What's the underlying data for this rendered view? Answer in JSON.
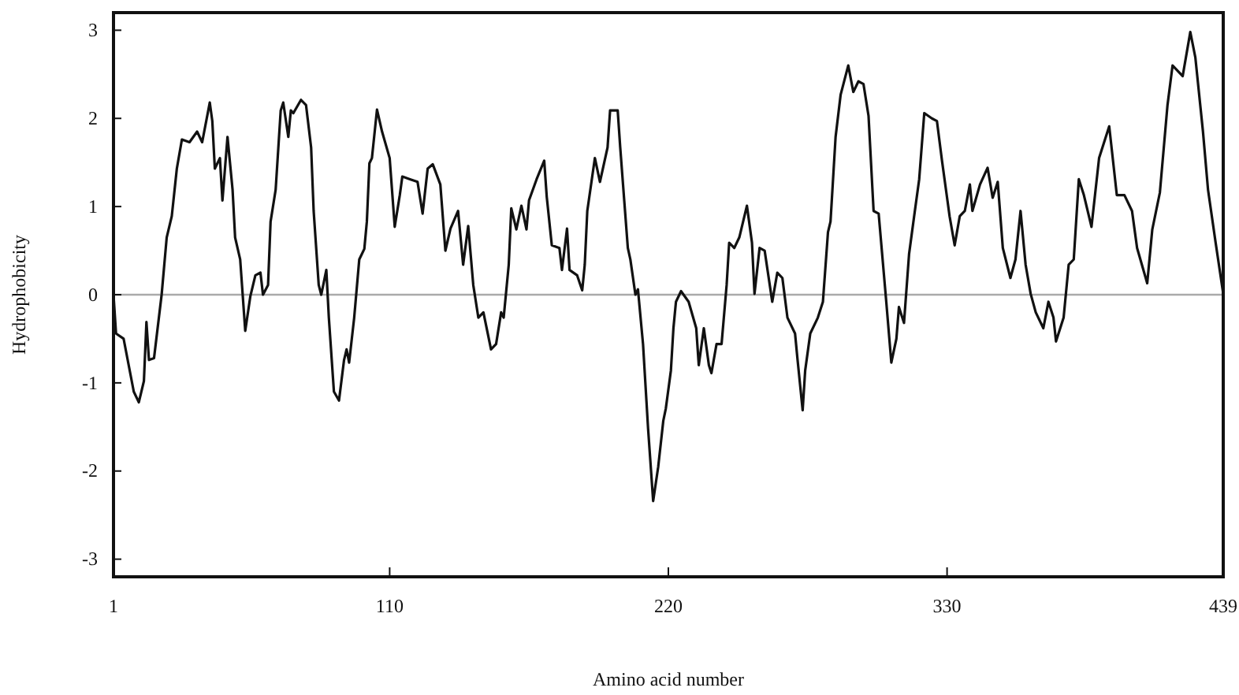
{
  "chart_data": {
    "type": "line",
    "xlabel": "Amino acid number",
    "ylabel": "Hydrophobicity",
    "xlim": [
      1,
      439
    ],
    "ylim": [
      -3.2,
      3.2
    ],
    "xticks": [
      1,
      110,
      220,
      330,
      439
    ],
    "yticks": [
      -3,
      -2,
      -1,
      0,
      1,
      2,
      3
    ],
    "grid": false,
    "marker": "none",
    "line_style": "solid",
    "ref_lines": [
      {
        "axis": "y",
        "value": 0,
        "color": "#aaaaaa"
      }
    ],
    "series": [
      {
        "color": "#111111",
        "x": [
          1,
          2,
          5,
          9,
          11,
          13,
          14,
          15,
          17,
          20,
          22,
          24,
          26,
          28,
          31,
          34,
          36,
          39,
          40,
          41,
          43,
          44,
          46,
          48,
          49,
          51,
          53,
          55,
          57,
          59,
          60,
          62,
          63,
          65,
          67,
          68,
          70,
          71,
          72,
          75,
          77,
          79,
          80,
          82,
          83,
          85,
          86,
          88,
          90,
          92,
          93,
          94,
          96,
          98,
          100,
          101,
          102,
          103,
          105,
          107,
          110,
          112,
          114,
          115,
          118,
          121,
          123,
          125,
          127,
          130,
          132,
          134,
          137,
          139,
          141,
          143,
          145,
          147,
          150,
          152,
          154,
          155,
          157,
          158,
          160,
          162,
          164,
          165,
          168,
          171,
          172,
          174,
          177,
          178,
          180,
          181,
          184,
          186,
          187,
          188,
          191,
          193,
          196,
          197,
          200,
          201,
          204,
          205,
          207,
          208,
          210,
          212,
          214,
          216,
          218,
          219,
          221,
          222,
          223,
          225,
          228,
          231,
          232,
          234,
          236,
          237,
          239,
          241,
          243,
          244,
          246,
          248,
          251,
          253,
          254,
          256,
          258,
          261,
          263,
          265,
          267,
          270,
          271,
          273,
          274,
          276,
          279,
          281,
          283,
          284,
          286,
          288,
          291,
          293,
          295,
          297,
          299,
          301,
          303,
          306,
          308,
          310,
          311,
          313,
          315,
          317,
          319,
          321,
          324,
          326,
          328,
          331,
          333,
          335,
          337,
          339,
          340,
          343,
          346,
          348,
          350,
          352,
          355,
          357,
          359,
          361,
          363,
          365,
          368,
          370,
          372,
          373,
          376,
          378,
          380,
          382,
          384,
          387,
          390,
          394,
          397,
          400,
          403,
          405,
          409,
          411,
          414,
          417,
          419,
          423,
          426,
          428,
          431,
          433,
          436,
          439
        ],
        "values": [
          0,
          -0.44,
          -0.5,
          -1.1,
          -1.22,
          -0.98,
          -0.31,
          -0.74,
          -0.72,
          0,
          0.65,
          0.89,
          1.43,
          1.76,
          1.73,
          1.85,
          1.73,
          2.18,
          1.97,
          1.43,
          1.55,
          1.07,
          1.79,
          1.19,
          0.65,
          0.4,
          -0.41,
          -0.02,
          0.22,
          0.25,
          0,
          0.11,
          0.83,
          1.19,
          2.09,
          2.18,
          1.79,
          2.09,
          2.06,
          2.21,
          2.15,
          1.67,
          0.95,
          0.11,
          0,
          0.28,
          -0.26,
          -1.1,
          -1.2,
          -0.74,
          -0.62,
          -0.77,
          -0.26,
          0.4,
          0.52,
          0.83,
          1.49,
          1.55,
          2.1,
          1.85,
          1.55,
          0.77,
          1.13,
          1.34,
          1.31,
          1.28,
          0.92,
          1.43,
          1.48,
          1.25,
          0.5,
          0.75,
          0.95,
          0.34,
          0.78,
          0.11,
          -0.26,
          -0.2,
          -0.62,
          -0.56,
          -0.2,
          -0.26,
          0.34,
          0.98,
          0.74,
          1.01,
          0.74,
          1.07,
          1.31,
          1.52,
          1.11,
          0.56,
          0.53,
          0.28,
          0.75,
          0.28,
          0.22,
          0.05,
          0.34,
          0.95,
          1.55,
          1.28,
          1.67,
          2.09,
          2.09,
          1.67,
          0.53,
          0.4,
          0,
          0.06,
          -0.56,
          -1.52,
          -2.34,
          -1.95,
          -1.43,
          -1.29,
          -0.86,
          -0.38,
          -0.08,
          0.04,
          -0.08,
          -0.38,
          -0.8,
          -0.38,
          -0.8,
          -0.89,
          -0.56,
          -0.56,
          0.11,
          0.59,
          0.53,
          0.65,
          1.01,
          0.59,
          0.01,
          0.53,
          0.5,
          -0.08,
          0.25,
          0.19,
          -0.26,
          -0.44,
          -0.74,
          -1.31,
          -0.86,
          -0.44,
          -0.26,
          -0.08,
          0.71,
          0.83,
          1.79,
          2.27,
          2.6,
          2.3,
          2.42,
          2.39,
          2.03,
          0.95,
          0.92,
          -0.08,
          -0.77,
          -0.5,
          -0.14,
          -0.32,
          0.46,
          0.89,
          1.31,
          2.06,
          2.0,
          1.97,
          1.52,
          0.89,
          0.56,
          0.89,
          0.95,
          1.25,
          0.95,
          1.25,
          1.44,
          1.1,
          1.28,
          0.53,
          0.19,
          0.4,
          0.95,
          0.34,
          0.01,
          -0.2,
          -0.38,
          -0.08,
          -0.26,
          -0.53,
          -0.26,
          0.34,
          0.4,
          1.31,
          1.13,
          0.77,
          1.55,
          1.91,
          1.13,
          1.13,
          0.95,
          0.53,
          0.13,
          0.74,
          1.16,
          2.15,
          2.6,
          2.48,
          2.98,
          2.69,
          1.85,
          1.19,
          0.59,
          0.01
        ]
      }
    ]
  }
}
